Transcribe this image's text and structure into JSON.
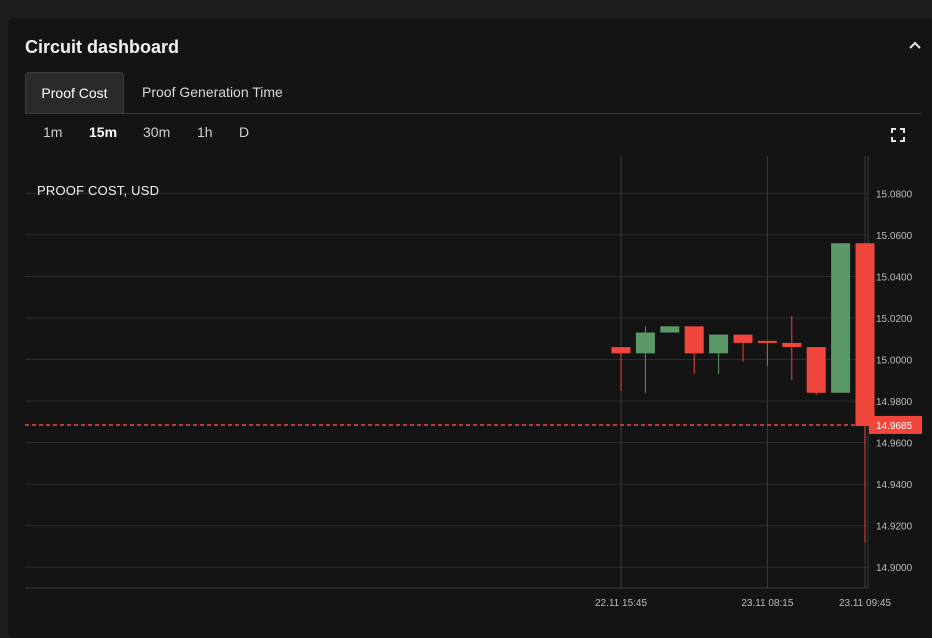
{
  "panel": {
    "title": "Circuit dashboard",
    "collapse_icon": "chevron-up-icon"
  },
  "tabs": [
    {
      "label": "Proof Cost",
      "active": true
    },
    {
      "label": "Proof Generation Time",
      "active": false
    }
  ],
  "intervals": [
    {
      "label": "1m",
      "active": false
    },
    {
      "label": "15m",
      "active": true
    },
    {
      "label": "30m",
      "active": false
    },
    {
      "label": "1h",
      "active": false
    },
    {
      "label": "D",
      "active": false
    }
  ],
  "fullscreen_icon": "fullscreen-icon",
  "colors": {
    "up": "#5b9a68",
    "down": "#f0463c",
    "grid": "#2c2c2e",
    "axis_text": "#bdbdbd",
    "last_price_bg": "#f0463c"
  },
  "chart_data": {
    "type": "candlestick",
    "title": "PROOF COST, USD",
    "ylim": [
      14.89,
      15.098
    ],
    "y_ticks": [
      "15.0800",
      "15.0600",
      "15.0400",
      "15.0200",
      "15.0000",
      "14.9800",
      "14.9600",
      "14.9400",
      "14.9200",
      "14.9000"
    ],
    "x_tick_labels": [
      "22.11 15:45",
      "23.11 08:15",
      "23.11 09:45"
    ],
    "last_price": "14.9685",
    "candles": [
      {
        "open": 15.006,
        "high": 15.006,
        "low": 14.985,
        "close": 15.003
      },
      {
        "open": 15.003,
        "high": 15.016,
        "low": 14.984,
        "close": 15.013
      },
      {
        "open": 15.013,
        "high": 15.016,
        "low": 15.013,
        "close": 15.016
      },
      {
        "open": 15.016,
        "high": 15.016,
        "low": 14.993,
        "close": 15.003
      },
      {
        "open": 15.003,
        "high": 15.012,
        "low": 14.993,
        "close": 15.012
      },
      {
        "open": 15.012,
        "high": 15.012,
        "low": 14.999,
        "close": 15.008
      },
      {
        "open": 15.009,
        "high": 15.009,
        "low": 14.997,
        "close": 15.008
      },
      {
        "open": 15.008,
        "high": 15.021,
        "low": 14.99,
        "close": 15.006
      },
      {
        "open": 15.006,
        "high": 15.006,
        "low": 14.983,
        "close": 14.984
      },
      {
        "open": 14.984,
        "high": 15.056,
        "low": 14.984,
        "close": 15.056
      },
      {
        "open": 15.056,
        "high": 15.056,
        "low": 14.912,
        "close": 14.968
      }
    ]
  }
}
